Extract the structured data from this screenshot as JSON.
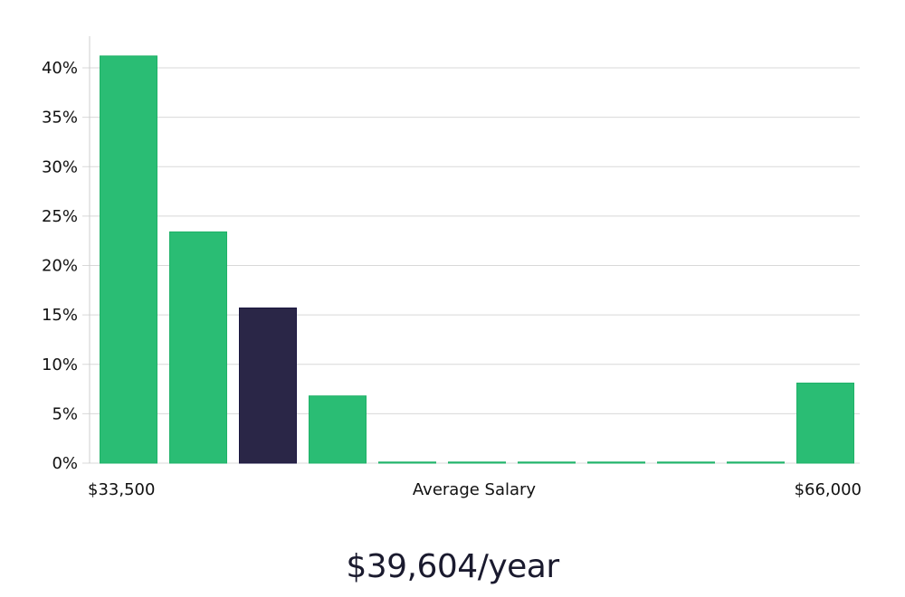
{
  "colors": {
    "bar": "#2abd74",
    "bar_stroke": "#1fb168",
    "highlight": "#2a2647",
    "highlight_stroke": "#1a1640",
    "grid": "#d8d8d8",
    "axis": "#cfcfcf",
    "text": "#111111"
  },
  "chart_data": {
    "type": "bar",
    "categories": [
      "1",
      "2",
      "3",
      "4",
      "5",
      "6",
      "7",
      "8",
      "9",
      "10",
      "11"
    ],
    "values": [
      41.2,
      23.4,
      15.7,
      6.8,
      0,
      0,
      0,
      0,
      0,
      0,
      8.1
    ],
    "highlight_index": 2,
    "ylim": [
      0,
      40
    ],
    "yticks": [
      0,
      5,
      10,
      15,
      20,
      25,
      30,
      35,
      40
    ],
    "ytick_format": "percent",
    "grid": true,
    "x_tick_labels": {
      "left": "$33,500",
      "right": "$66,000"
    },
    "xlabel": "Average Salary"
  },
  "summary": {
    "average": "$39,604/year"
  }
}
